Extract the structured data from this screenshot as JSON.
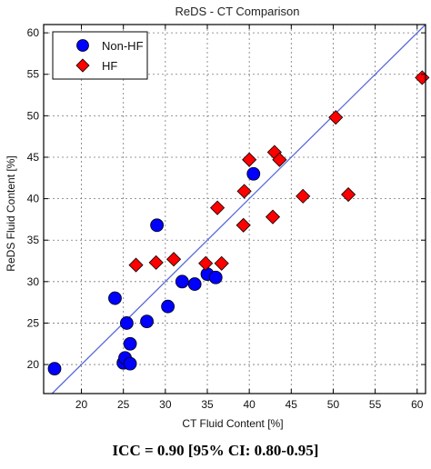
{
  "chart_data": {
    "type": "scatter",
    "title": "ReDS - CT Comparison",
    "xlabel": "CT Fluid Content [%]",
    "ylabel": "ReDS Fluid Content [%]",
    "xlim": [
      15.5,
      61
    ],
    "ylim": [
      16.5,
      61
    ],
    "xticks": [
      20,
      25,
      30,
      35,
      40,
      45,
      50,
      55,
      60
    ],
    "yticks": [
      20,
      25,
      30,
      35,
      40,
      45,
      50,
      55,
      60
    ],
    "grid": true,
    "legend_position": "top-left",
    "identity_line": true,
    "series": [
      {
        "name": "Non-HF",
        "marker": "circle",
        "color": "#0000ff",
        "points": [
          [
            16.8,
            19.5
          ],
          [
            24.0,
            28.0
          ],
          [
            25.0,
            20.2
          ],
          [
            25.2,
            20.8
          ],
          [
            25.4,
            25.0
          ],
          [
            25.8,
            20.1
          ],
          [
            25.8,
            22.5
          ],
          [
            27.8,
            25.2
          ],
          [
            29.0,
            36.8
          ],
          [
            30.3,
            27.0
          ],
          [
            32.0,
            30.0
          ],
          [
            33.5,
            29.7
          ],
          [
            35.0,
            30.9
          ],
          [
            36.0,
            30.5
          ],
          [
            40.5,
            43.0
          ]
        ]
      },
      {
        "name": "HF",
        "marker": "diamond",
        "color": "#ff0000",
        "points": [
          [
            26.5,
            32.0
          ],
          [
            28.9,
            32.3
          ],
          [
            31.0,
            32.7
          ],
          [
            34.8,
            32.2
          ],
          [
            36.2,
            38.9
          ],
          [
            36.7,
            32.2
          ],
          [
            39.3,
            36.8
          ],
          [
            39.4,
            40.9
          ],
          [
            40.0,
            44.7
          ],
          [
            42.8,
            37.8
          ],
          [
            43.0,
            45.6
          ],
          [
            43.6,
            44.7
          ],
          [
            46.4,
            40.3
          ],
          [
            50.3,
            49.8
          ],
          [
            51.8,
            40.5
          ],
          [
            60.6,
            54.6
          ]
        ]
      }
    ]
  },
  "caption": "ICC = 0.90 [95% CI: 0.80-0.95]"
}
